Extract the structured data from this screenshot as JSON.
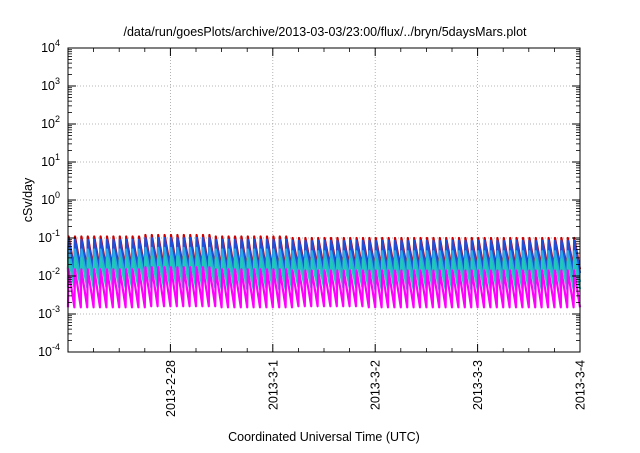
{
  "chart_data": {
    "type": "line",
    "title": "/data/run/goesPlots/archive/2013-03-03/23:00/flux/../bryn/5daysMars.plot",
    "xlabel": "Coordinated Universal Time (UTC)",
    "ylabel": "cSv/day",
    "y_scale": "log",
    "ylim": [
      0.0001,
      10000
    ],
    "y_ticks": [
      {
        "base": "10",
        "exp": "4",
        "value": 10000
      },
      {
        "base": "10",
        "exp": "3",
        "value": 1000
      },
      {
        "base": "10",
        "exp": "2",
        "value": 100
      },
      {
        "base": "10",
        "exp": "1",
        "value": 10
      },
      {
        "base": "10",
        "exp": "0",
        "value": 1
      },
      {
        "base": "10",
        "exp": "-1",
        "value": 0.1
      },
      {
        "base": "10",
        "exp": "-2",
        "value": 0.01
      },
      {
        "base": "10",
        "exp": "-3",
        "value": 0.001
      },
      {
        "base": "10",
        "exp": "-4",
        "value": 0.0001
      }
    ],
    "xlim": [
      "2013-02-27 00:00",
      "2013-03-04 00:00"
    ],
    "x_ticks": [
      "2013-2-28",
      "2013-3-1",
      "2013-3-2",
      "2013-3-3",
      "2013-3-4"
    ],
    "grid": true,
    "sawtooth_period_days": 0.0625,
    "series": [
      {
        "color": "#cc0000",
        "values_peak": [
          0.11,
          0.12,
          0.11,
          0.1,
          0.1,
          0.1,
          0.1
        ],
        "values_trough": [
          0.015,
          0.016,
          0.014,
          0.016,
          0.015,
          0.015,
          0.015
        ]
      },
      {
        "color": "#1f4fd8",
        "values_peak": [
          0.09,
          0.1,
          0.09,
          0.085,
          0.085,
          0.085,
          0.085
        ],
        "values_trough": [
          0.013,
          0.013,
          0.012,
          0.013,
          0.012,
          0.012,
          0.012
        ]
      },
      {
        "color": "#2aa7e8",
        "values_peak": [
          0.05,
          0.055,
          0.05,
          0.045,
          0.045,
          0.045,
          0.045
        ],
        "values_trough": [
          0.008,
          0.008,
          0.007,
          0.008,
          0.007,
          0.007,
          0.007
        ]
      },
      {
        "color": "#20c8b8",
        "values_peak": [
          0.03,
          0.033,
          0.03,
          0.028,
          0.028,
          0.028,
          0.028
        ],
        "values_trough": [
          0.005,
          0.005,
          0.0045,
          0.005,
          0.0045,
          0.0045,
          0.0045
        ]
      },
      {
        "color": "#ff00ff",
        "values_peak": [
          0.015,
          0.017,
          0.015,
          0.014,
          0.014,
          0.014,
          0.014
        ],
        "values_trough": [
          0.0015,
          0.0016,
          0.0015,
          0.0016,
          0.0015,
          0.0015,
          0.0015
        ]
      }
    ],
    "colors": {
      "grid": "#a0a0a0",
      "axis": "#000000",
      "background": "#ffffff"
    }
  }
}
